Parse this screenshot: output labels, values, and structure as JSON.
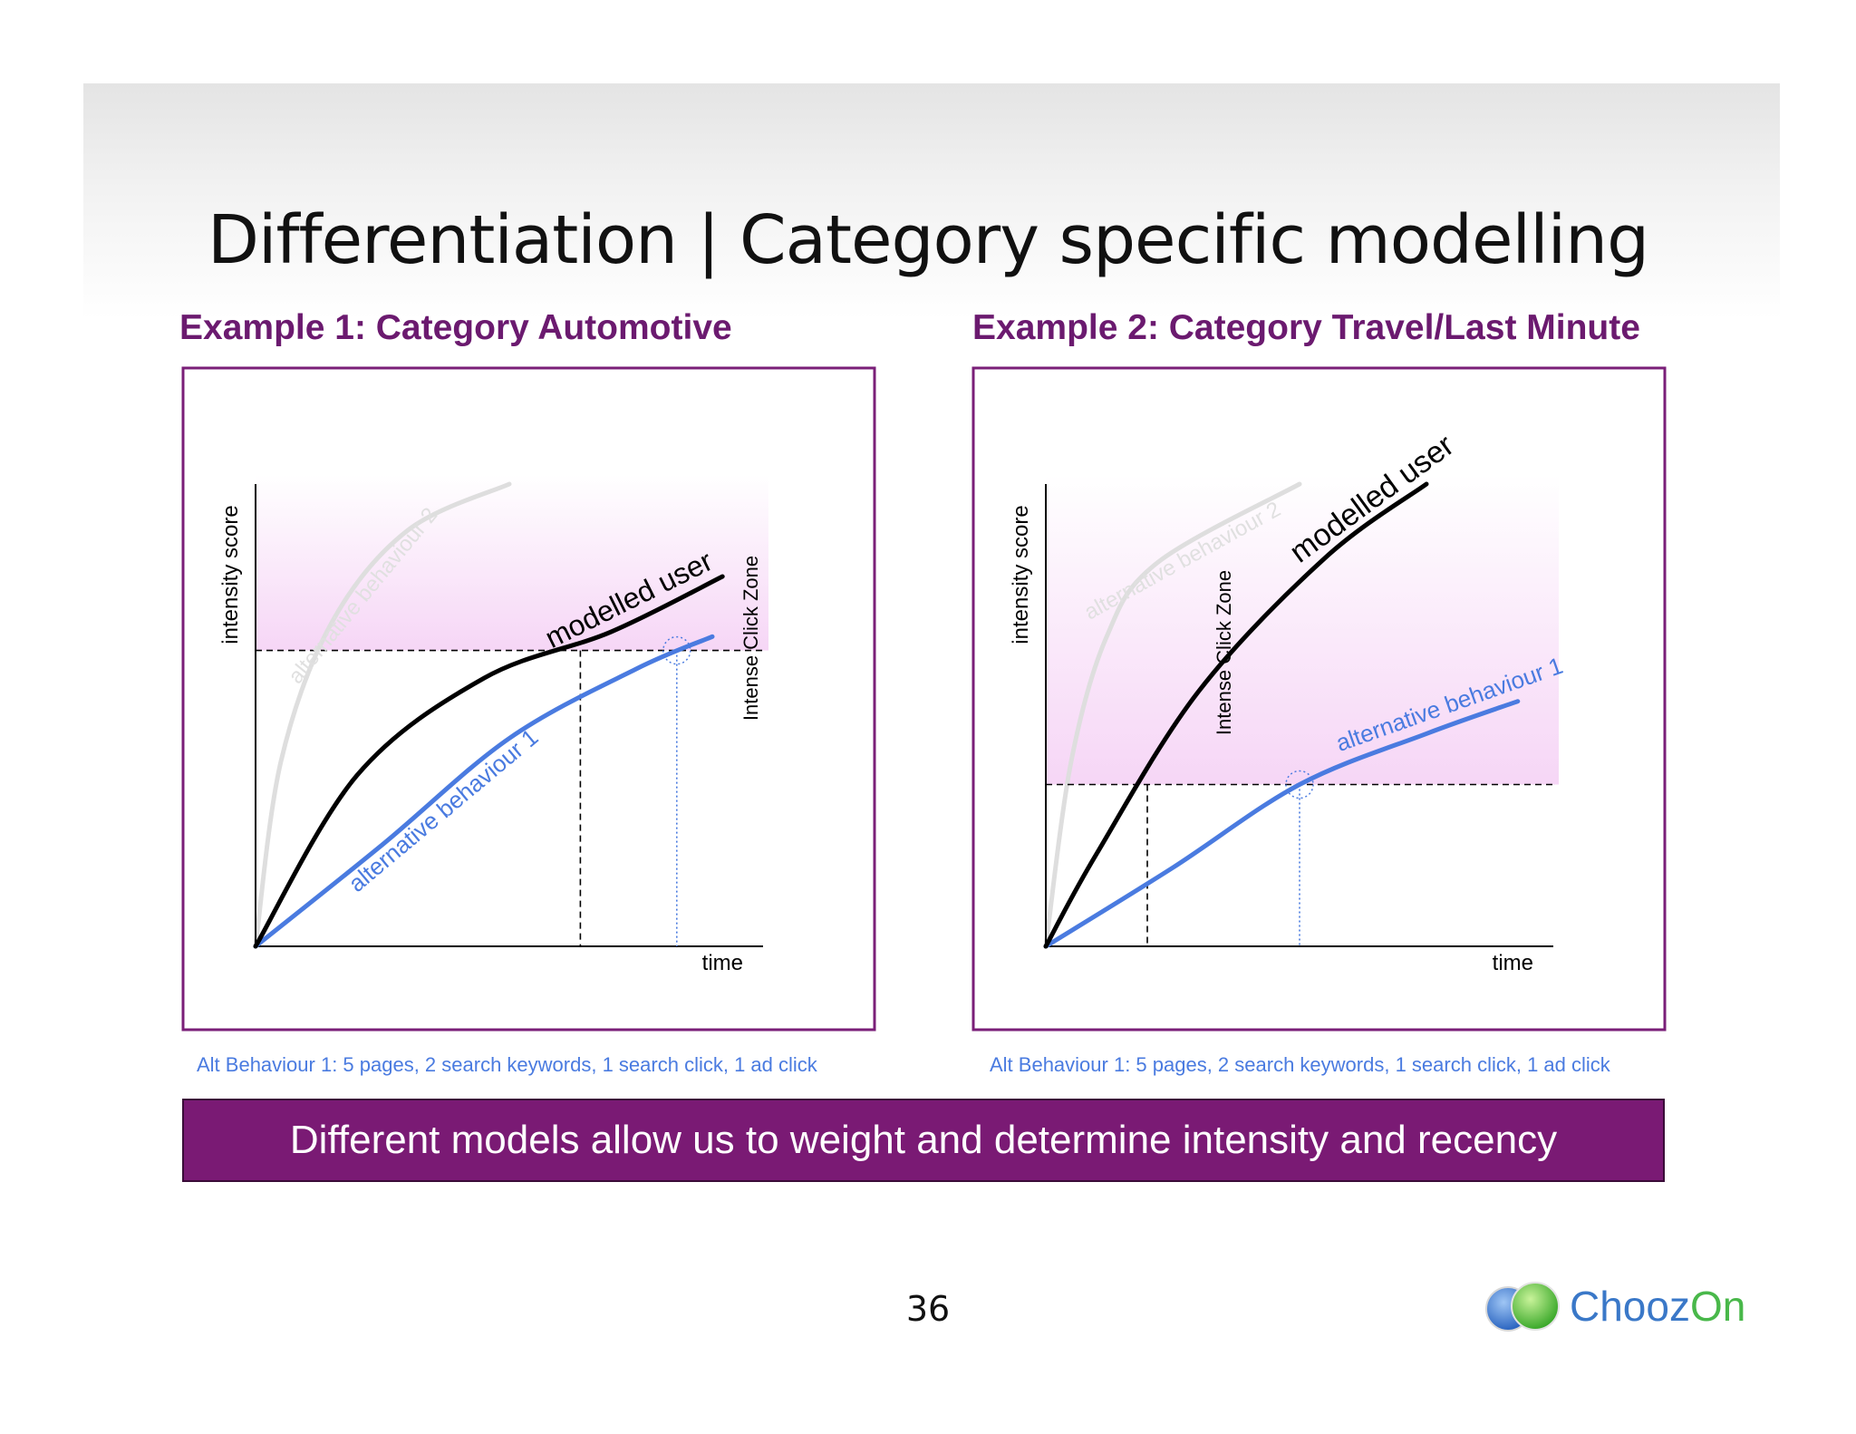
{
  "slide": {
    "title": "Differentiation | Category specific modelling",
    "page_number": "36",
    "banner": "Different models allow us to weight and determine intensity and recency",
    "logo": {
      "text_main": "Chooz",
      "text_accent": "On"
    }
  },
  "examples": [
    {
      "heading": "Example 1: Category Automotive",
      "caption": "Alt Behaviour 1: 5 pages, 2 search keywords, 1 search click, 1 ad click"
    },
    {
      "heading": "Example 2: Category Travel/Last Minute",
      "caption": "Alt Behaviour 1: 5 pages, 2 search keywords, 1 search click, 1 ad click"
    }
  ],
  "colors": {
    "frame": "#7a1f78",
    "heading": "#6b1a6f",
    "modelled_user": "#000000",
    "alt_behaviour_1": "#4a7be0",
    "alt_behaviour_2": "#dedede",
    "click_zone_fill": "#f6d6f6",
    "banner": "#7a1a74"
  },
  "chart_data": [
    {
      "type": "line",
      "xlabel": "time",
      "ylabel": "intensity score",
      "zone_label": "Intense Click Zone",
      "threshold_level": 0.64,
      "series": [
        {
          "name": "modelled user",
          "key": "modelled",
          "x": [
            0,
            0.2,
            0.45,
            0.7,
            0.92
          ],
          "y": [
            0,
            0.37,
            0.58,
            0.68,
            0.8
          ],
          "crosses_threshold_at": 0.64
        },
        {
          "name": "alternative behaviour 1",
          "key": "alt1",
          "x": [
            0,
            0.25,
            0.5,
            0.75,
            0.9
          ],
          "y": [
            0,
            0.22,
            0.45,
            0.6,
            0.67
          ],
          "crosses_threshold_at": 0.83
        },
        {
          "name": "alternative behaviour 2",
          "key": "alt2",
          "x": [
            0,
            0.05,
            0.15,
            0.3,
            0.5
          ],
          "y": [
            0,
            0.4,
            0.7,
            0.9,
            1.0
          ]
        }
      ]
    },
    {
      "type": "line",
      "xlabel": "time",
      "ylabel": "intensity score",
      "zone_label": "Intense Click Zone",
      "threshold_level": 0.35,
      "series": [
        {
          "name": "modelled user",
          "key": "modelled",
          "x": [
            0,
            0.1,
            0.3,
            0.55,
            0.75
          ],
          "y": [
            0,
            0.2,
            0.55,
            0.84,
            1.0
          ],
          "crosses_threshold_at": 0.2
        },
        {
          "name": "alternative behaviour 1",
          "key": "alt1",
          "x": [
            0,
            0.25,
            0.5,
            0.75,
            0.93
          ],
          "y": [
            0,
            0.17,
            0.35,
            0.46,
            0.53
          ],
          "crosses_threshold_at": 0.5
        },
        {
          "name": "alternative behaviour 2",
          "key": "alt2",
          "x": [
            0,
            0.05,
            0.12,
            0.22,
            0.5
          ],
          "y": [
            0,
            0.4,
            0.67,
            0.83,
            1.0
          ]
        }
      ]
    }
  ]
}
